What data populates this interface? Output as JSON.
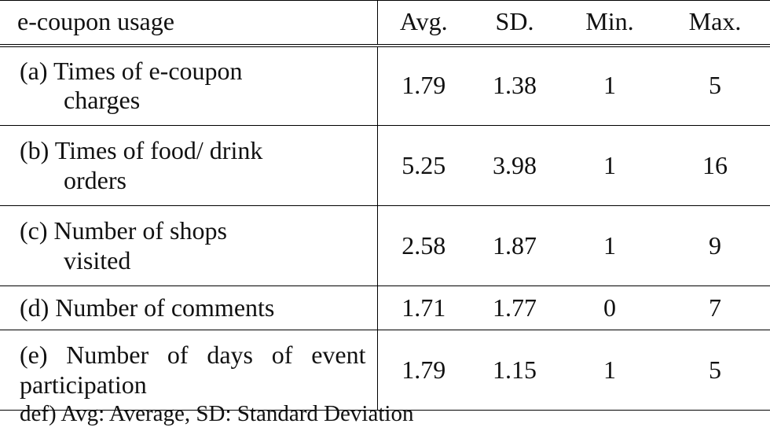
{
  "table": {
    "header": {
      "label": "e-coupon usage",
      "avg": "Avg.",
      "sd": "SD.",
      "min": "Min.",
      "max": "Max."
    },
    "rows": [
      {
        "label_line1": "(a) Times of e-coupon",
        "label_line2": "charges",
        "avg": "1.79",
        "sd": "1.38",
        "min": "1",
        "max": "5"
      },
      {
        "label_line1": "(b) Times of food/ drink",
        "label_line2": "orders",
        "avg": "5.25",
        "sd": "3.98",
        "min": "1",
        "max": "16"
      },
      {
        "label_line1": "(c) Number of shops",
        "label_line2": "visited",
        "avg": "2.58",
        "sd": "1.87",
        "min": "1",
        "max": "9"
      },
      {
        "label_line1": "(d) Number of comments",
        "label_line2": "",
        "avg": "1.71",
        "sd": "1.77",
        "min": "0",
        "max": "7"
      },
      {
        "label_line1": "(e) Number of days of event",
        "label_line2": "participation",
        "avg": "1.79",
        "sd": "1.15",
        "min": "1",
        "max": "5"
      }
    ]
  },
  "footnote": "def) Avg: Average, SD: Standard Deviation"
}
